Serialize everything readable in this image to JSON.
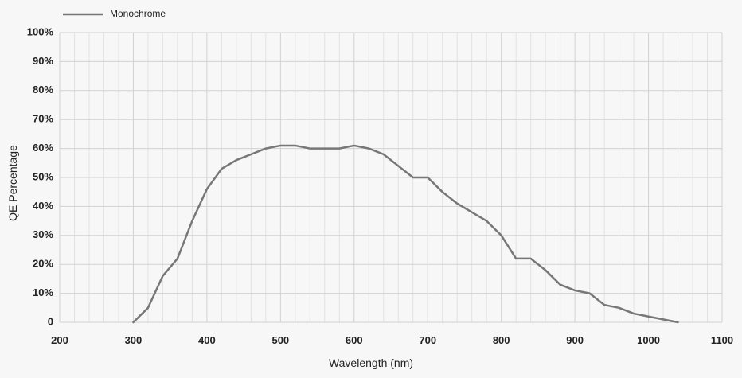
{
  "chart_data": {
    "type": "line",
    "title": "",
    "xlabel": "Wavelength (nm)",
    "ylabel": "QE Percentage",
    "xlim": [
      200,
      1100
    ],
    "ylim": [
      0,
      100
    ],
    "x_ticks": [
      200,
      300,
      400,
      500,
      600,
      700,
      800,
      900,
      1000,
      1100
    ],
    "x_tick_labels": [
      "200",
      "300",
      "400",
      "500",
      "600",
      "700",
      "800",
      "900",
      "1000",
      "1100"
    ],
    "y_ticks": [
      0,
      10,
      20,
      30,
      40,
      50,
      60,
      70,
      80,
      90,
      100
    ],
    "y_tick_labels": [
      "0",
      "10%",
      "20%",
      "30%",
      "40%",
      "50%",
      "60%",
      "70%",
      "80%",
      "90%",
      "100%"
    ],
    "grid": true,
    "legend_position": "top-left",
    "series": [
      {
        "name": "Monochrome",
        "color": "#777777",
        "x": [
          300,
          320,
          340,
          360,
          380,
          400,
          420,
          440,
          460,
          480,
          500,
          520,
          540,
          560,
          580,
          600,
          620,
          640,
          660,
          680,
          700,
          720,
          740,
          760,
          780,
          800,
          820,
          840,
          860,
          880,
          900,
          920,
          940,
          960,
          980,
          1000,
          1020,
          1040
        ],
        "y": [
          0,
          5,
          16,
          22,
          35,
          46,
          53,
          56,
          58,
          60,
          61,
          61,
          60,
          60,
          60,
          61,
          60,
          58,
          54,
          50,
          50,
          45,
          41,
          38,
          35,
          30,
          22,
          22,
          18,
          13,
          11,
          10,
          6,
          5,
          3,
          2,
          1,
          0
        ]
      }
    ]
  }
}
